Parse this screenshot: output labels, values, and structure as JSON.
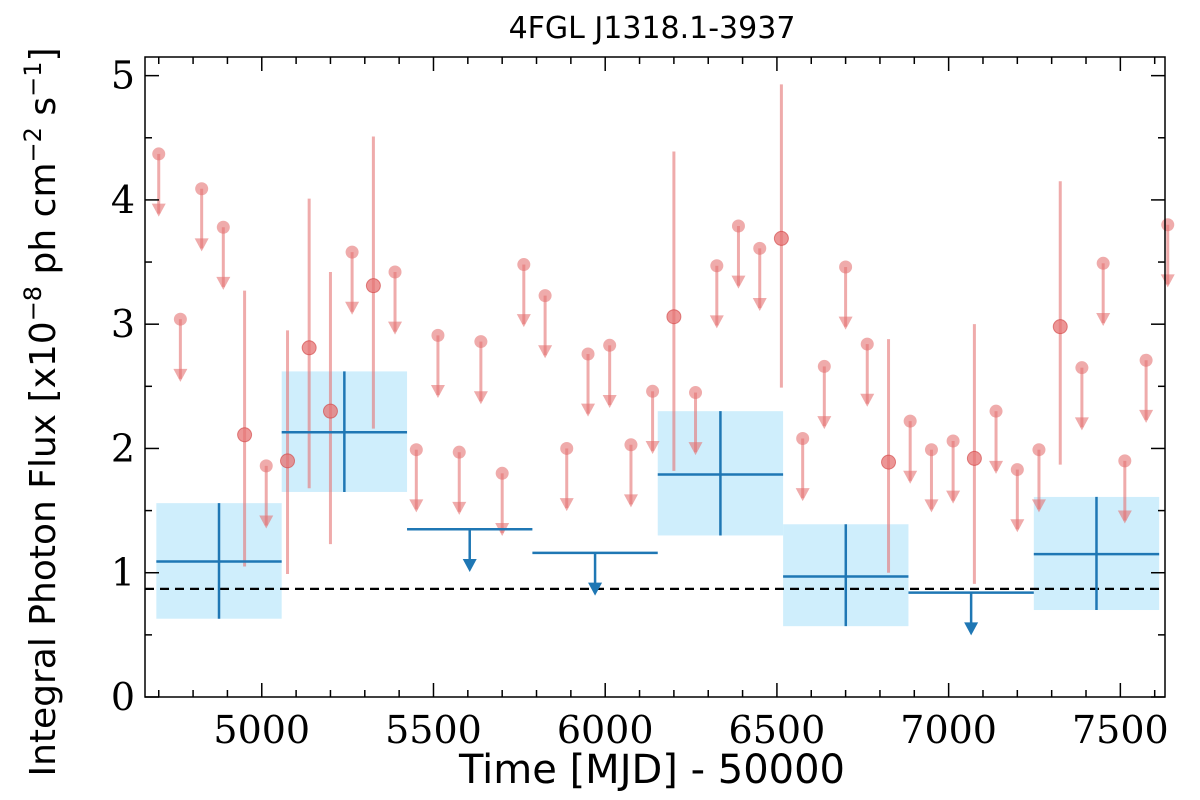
{
  "chart_data": {
    "type": "scatter",
    "title": "4FGL J1318.1-3937",
    "xlabel": "Time [MJD] - 50000",
    "ylabel_parts": {
      "prefix": "Integral Photon Flux [x10",
      "exp1": "−8",
      "mid": " ph cm",
      "exp2": "−2",
      "mid2": " s",
      "exp3": "−1",
      "suffix": "]"
    },
    "xlim": [
      4660,
      7630
    ],
    "ylim": [
      0,
      5.15
    ],
    "xticks": [
      5000,
      5500,
      6000,
      6500,
      7000,
      7500
    ],
    "xtick_labels": [
      "5000",
      "5500",
      "6000",
      "6500",
      "7000",
      "7500"
    ],
    "yticks": [
      0,
      1,
      2,
      3,
      4,
      5
    ],
    "ytick_labels": [
      "0",
      "1",
      "2",
      "3",
      "4",
      "5"
    ],
    "mean_flux": 0.87,
    "colors": {
      "monthly": "#e57373",
      "yearly": "#1f77b4",
      "yearly_box": "#cfeefc",
      "mean_line": "#000000"
    },
    "series": [
      {
        "kind": "monthly",
        "points": [
          {
            "x": 4700,
            "y": 4.37,
            "ul": true
          },
          {
            "x": 4763,
            "y": 3.04,
            "ul": true
          },
          {
            "x": 4825,
            "y": 4.09,
            "ul": true
          },
          {
            "x": 4888,
            "y": 3.78,
            "ul": true
          },
          {
            "x": 4950,
            "y": 2.11,
            "ul": false,
            "lo": 1.05,
            "hi": 3.27
          },
          {
            "x": 5013,
            "y": 1.86,
            "ul": true
          },
          {
            "x": 5075,
            "y": 1.9,
            "ul": false,
            "lo": 0.99,
            "hi": 2.95
          },
          {
            "x": 5138,
            "y": 2.81,
            "ul": false,
            "lo": 1.68,
            "hi": 4.01
          },
          {
            "x": 5200,
            "y": 2.3,
            "ul": false,
            "lo": 1.23,
            "hi": 3.42
          },
          {
            "x": 5263,
            "y": 3.58,
            "ul": true
          },
          {
            "x": 5325,
            "y": 3.31,
            "ul": false,
            "lo": 2.16,
            "hi": 4.51
          },
          {
            "x": 5388,
            "y": 3.42,
            "ul": true
          },
          {
            "x": 5450,
            "y": 1.99,
            "ul": true
          },
          {
            "x": 5513,
            "y": 2.91,
            "ul": true
          },
          {
            "x": 5575,
            "y": 1.97,
            "ul": true
          },
          {
            "x": 5638,
            "y": 2.86,
            "ul": true
          },
          {
            "x": 5700,
            "y": 1.8,
            "ul": true
          },
          {
            "x": 5763,
            "y": 3.48,
            "ul": true
          },
          {
            "x": 5825,
            "y": 3.23,
            "ul": true
          },
          {
            "x": 5888,
            "y": 2.0,
            "ul": true
          },
          {
            "x": 5950,
            "y": 2.76,
            "ul": true
          },
          {
            "x": 6013,
            "y": 2.83,
            "ul": true
          },
          {
            "x": 6075,
            "y": 2.03,
            "ul": true
          },
          {
            "x": 6138,
            "y": 2.46,
            "ul": true
          },
          {
            "x": 6200,
            "y": 3.06,
            "ul": false,
            "lo": 1.82,
            "hi": 4.39
          },
          {
            "x": 6263,
            "y": 2.45,
            "ul": true
          },
          {
            "x": 6325,
            "y": 3.47,
            "ul": true
          },
          {
            "x": 6388,
            "y": 3.79,
            "ul": true
          },
          {
            "x": 6450,
            "y": 3.61,
            "ul": true
          },
          {
            "x": 6513,
            "y": 3.69,
            "ul": false,
            "lo": 2.49,
            "hi": 4.93
          },
          {
            "x": 6575,
            "y": 2.08,
            "ul": true
          },
          {
            "x": 6638,
            "y": 2.66,
            "ul": true
          },
          {
            "x": 6700,
            "y": 3.46,
            "ul": true
          },
          {
            "x": 6763,
            "y": 2.84,
            "ul": true
          },
          {
            "x": 6825,
            "y": 1.89,
            "ul": false,
            "lo": 1.0,
            "hi": 2.88
          },
          {
            "x": 6888,
            "y": 2.22,
            "ul": true
          },
          {
            "x": 6950,
            "y": 1.99,
            "ul": true
          },
          {
            "x": 7013,
            "y": 2.06,
            "ul": true
          },
          {
            "x": 7075,
            "y": 1.92,
            "ul": false,
            "lo": 0.91,
            "hi": 3.0
          },
          {
            "x": 7138,
            "y": 2.3,
            "ul": true
          },
          {
            "x": 7200,
            "y": 1.83,
            "ul": true
          },
          {
            "x": 7263,
            "y": 1.99,
            "ul": true
          },
          {
            "x": 7325,
            "y": 2.98,
            "ul": false,
            "lo": 1.87,
            "hi": 4.15
          },
          {
            "x": 7388,
            "y": 2.65,
            "ul": true
          },
          {
            "x": 7450,
            "y": 3.49,
            "ul": true
          },
          {
            "x": 7513,
            "y": 1.9,
            "ul": true
          },
          {
            "x": 7575,
            "y": 2.71,
            "ul": true
          },
          {
            "x": 7638,
            "y": 3.8,
            "ul": true
          }
        ]
      },
      {
        "kind": "yearly",
        "bins": [
          {
            "x0": 4693,
            "x1": 5058,
            "y": 1.09,
            "ylo": 0.63,
            "yhi": 1.56,
            "ul": false
          },
          {
            "x0": 5058,
            "x1": 5423,
            "y": 2.13,
            "ylo": 1.65,
            "yhi": 2.62,
            "ul": false
          },
          {
            "x0": 5423,
            "x1": 5788,
            "y": 1.35,
            "ul": true
          },
          {
            "x0": 5788,
            "x1": 6153,
            "y": 1.16,
            "ul": true
          },
          {
            "x0": 6153,
            "x1": 6518,
            "y": 1.79,
            "ylo": 1.3,
            "yhi": 2.3,
            "ul": false
          },
          {
            "x0": 6518,
            "x1": 6883,
            "y": 0.97,
            "ylo": 0.57,
            "yhi": 1.39,
            "ul": false
          },
          {
            "x0": 6883,
            "x1": 7248,
            "y": 0.84,
            "ul": true
          },
          {
            "x0": 7248,
            "x1": 7613,
            "y": 1.15,
            "ylo": 0.7,
            "yhi": 1.61,
            "ul": false
          }
        ]
      }
    ]
  }
}
